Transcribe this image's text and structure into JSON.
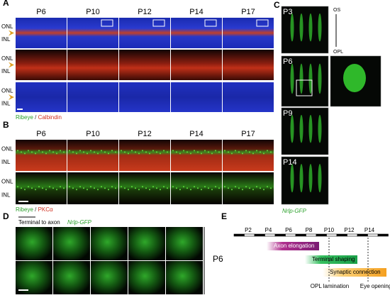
{
  "panel_a": {
    "label": "A",
    "columns": [
      "P6",
      "P10",
      "P12",
      "P14",
      "P17"
    ],
    "layers": [
      "ONL",
      "INL"
    ],
    "stain": [
      "Ribeye",
      "/",
      "Calbindin"
    ]
  },
  "panel_b": {
    "label": "B",
    "columns": [
      "P6",
      "P10",
      "P12",
      "P14",
      "P17"
    ],
    "layers": [
      "ONL",
      "INL"
    ],
    "stain": [
      "Ribeye",
      "/",
      "PKCα"
    ]
  },
  "panel_c": {
    "label": "C",
    "ages": [
      "P3",
      "P6",
      "P9",
      "P14"
    ],
    "axis": [
      "OS",
      "OPL"
    ],
    "caption": "Nrlp-GFP"
  },
  "panel_d": {
    "label": "D",
    "direction": "Terminal to axon",
    "reporter": "Nrlp-GFP",
    "age": "P6"
  },
  "panel_e": {
    "label": "E",
    "ticks": [
      "P2",
      "P4",
      "P6",
      "P8",
      "P10",
      "P12",
      "P14"
    ],
    "stages": [
      "Axon elongation",
      "Terminal shaping",
      "Synaptic connection"
    ],
    "events": [
      "OPL lamination",
      "Eye opening"
    ]
  }
}
